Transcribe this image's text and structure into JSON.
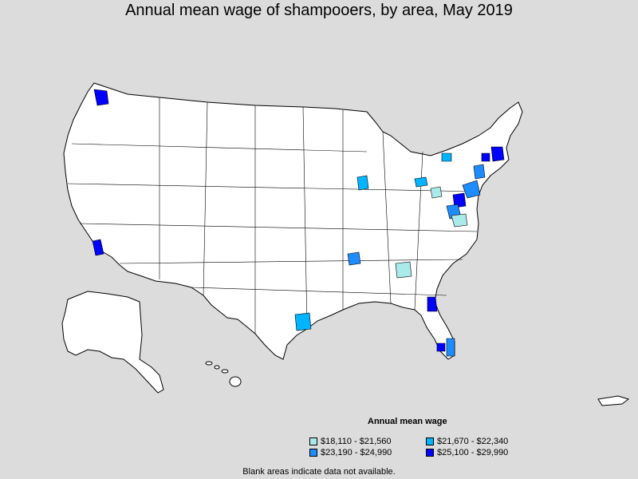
{
  "title": "Annual mean wage of shampooers, by area, May 2019",
  "legend": {
    "title": "Annual mean wage",
    "items": [
      {
        "label": "$18,110 - $21,560",
        "color": "#aaeaea"
      },
      {
        "label": "$21,670 - $22,340",
        "color": "#00b4ff"
      },
      {
        "label": "$23,190 - $24,990",
        "color": "#1e8cff"
      },
      {
        "label": "$25,100 - $29,990",
        "color": "#0000ff"
      }
    ]
  },
  "footnote": "Blank areas indicate data not available.",
  "map_style": {
    "land_color": "#ffffff",
    "border_color": "#000000",
    "background": "#dcdcdc"
  }
}
